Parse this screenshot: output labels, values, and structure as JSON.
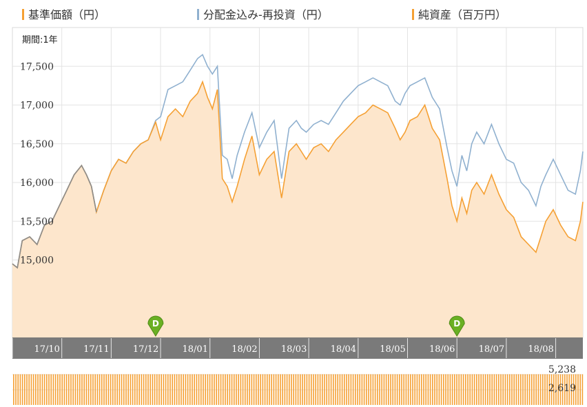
{
  "legend": {
    "items": [
      {
        "label": "基準価額（円）",
        "color": "#f5a033"
      },
      {
        "label": "分配金込み-再投資（円）",
        "color": "#8fb0cf"
      },
      {
        "label": "純資産（百万円）",
        "color": "#f5a033"
      }
    ]
  },
  "period_label": "期間:1年",
  "distribution_marker": "D",
  "colors": {
    "nav_line": "#f5a033",
    "nav_fill": "#fde6cc",
    "reinvest_line": "#8fb0cf",
    "grid": "#e3e3e3",
    "month_bar": "#7a7a7a",
    "volume_bar": "#f5a033",
    "marker": "#6ab023"
  },
  "chart_data": {
    "type": "line",
    "title": "",
    "ylim": [
      14000,
      18000
    ],
    "yticks": [
      "15,000",
      "15,500",
      "16,000",
      "16,500",
      "17,000",
      "17,500"
    ],
    "ytick_values": [
      15000,
      15500,
      16000,
      16500,
      17000,
      17500
    ],
    "x_categories": [
      "17/10",
      "17/11",
      "17/12",
      "18/01",
      "18/02",
      "18/03",
      "18/04",
      "18/05",
      "18/06",
      "18/07",
      "18/08"
    ],
    "x_positions_month": [
      0.7,
      1.7,
      2.7,
      3.7,
      4.7,
      5.7,
      6.7,
      7.7,
      8.7,
      9.7,
      10.7
    ],
    "distribution_months": [
      2.9,
      9.0
    ],
    "series": [
      {
        "name": "基準価額（円）",
        "x": [
          0,
          0.1,
          0.2,
          0.35,
          0.5,
          0.65,
          0.8,
          0.95,
          1.1,
          1.25,
          1.4,
          1.5,
          1.6,
          1.7,
          1.85,
          2.0,
          2.15,
          2.3,
          2.45,
          2.6,
          2.75,
          2.9,
          3.0,
          3.15,
          3.3,
          3.45,
          3.6,
          3.75,
          3.85,
          3.95,
          4.05,
          4.15,
          4.25,
          4.35,
          4.45,
          4.55,
          4.7,
          4.85,
          5.0,
          5.15,
          5.3,
          5.45,
          5.6,
          5.75,
          5.85,
          5.95,
          6.1,
          6.25,
          6.4,
          6.55,
          6.7,
          6.85,
          7.0,
          7.15,
          7.3,
          7.45,
          7.6,
          7.75,
          7.85,
          7.95,
          8.05,
          8.2,
          8.35,
          8.5,
          8.65,
          8.8,
          8.9,
          9.0,
          9.1,
          9.2,
          9.3,
          9.4,
          9.55,
          9.7,
          9.85,
          10.0,
          10.15,
          10.3,
          10.45,
          10.6,
          10.7,
          10.8,
          10.95,
          11.1,
          11.25,
          11.4,
          11.5,
          11.55
        ],
        "values": [
          14950,
          14900,
          15250,
          15300,
          15200,
          15450,
          15500,
          15700,
          15900,
          16100,
          16220,
          16100,
          15950,
          15620,
          15900,
          16150,
          16300,
          16250,
          16400,
          16500,
          16550,
          16780,
          16550,
          16850,
          16950,
          16850,
          17050,
          17150,
          17300,
          17100,
          16950,
          17200,
          16050,
          15950,
          15750,
          15950,
          16300,
          16600,
          16100,
          16300,
          16400,
          15800,
          16400,
          16500,
          16400,
          16300,
          16450,
          16500,
          16400,
          16550,
          16650,
          16750,
          16850,
          16900,
          17000,
          16950,
          16900,
          16700,
          16550,
          16650,
          16800,
          16850,
          17000,
          16700,
          16550,
          16050,
          15700,
          15500,
          15800,
          15600,
          15900,
          16000,
          15850,
          16100,
          15850,
          15650,
          15550,
          15300,
          15200,
          15100,
          15300,
          15500,
          15650,
          15450,
          15300,
          15250,
          15500,
          15750
        ]
      },
      {
        "name": "分配金込み-再投資（円）",
        "x": [
          0,
          0.1,
          0.2,
          0.35,
          0.5,
          0.65,
          0.8,
          0.95,
          1.1,
          1.25,
          1.4,
          1.5,
          1.6,
          1.7,
          1.85,
          2.0,
          2.15,
          2.3,
          2.45,
          2.6,
          2.75,
          2.9,
          3.0,
          3.15,
          3.3,
          3.45,
          3.6,
          3.75,
          3.85,
          3.95,
          4.05,
          4.15,
          4.25,
          4.35,
          4.45,
          4.55,
          4.7,
          4.85,
          5.0,
          5.15,
          5.3,
          5.45,
          5.6,
          5.75,
          5.85,
          5.95,
          6.1,
          6.25,
          6.4,
          6.55,
          6.7,
          6.85,
          7.0,
          7.15,
          7.3,
          7.45,
          7.6,
          7.75,
          7.85,
          7.95,
          8.05,
          8.2,
          8.35,
          8.5,
          8.65,
          8.8,
          8.9,
          9.0,
          9.1,
          9.2,
          9.3,
          9.4,
          9.55,
          9.7,
          9.85,
          10.0,
          10.15,
          10.3,
          10.45,
          10.6,
          10.7,
          10.8,
          10.95,
          11.1,
          11.25,
          11.4,
          11.5,
          11.55
        ],
        "values": [
          14950,
          14900,
          15250,
          15300,
          15200,
          15450,
          15500,
          15700,
          15900,
          16100,
          16220,
          16100,
          15950,
          15620,
          15900,
          16150,
          16300,
          16250,
          16400,
          16500,
          16550,
          16800,
          16850,
          17200,
          17250,
          17300,
          17450,
          17600,
          17650,
          17500,
          17400,
          17500,
          16350,
          16300,
          16050,
          16350,
          16650,
          16900,
          16450,
          16650,
          16800,
          16050,
          16700,
          16800,
          16700,
          16650,
          16750,
          16800,
          16750,
          16900,
          17050,
          17150,
          17250,
          17300,
          17350,
          17300,
          17250,
          17050,
          17000,
          17150,
          17250,
          17300,
          17350,
          17100,
          16950,
          16450,
          16150,
          15950,
          16350,
          16150,
          16500,
          16650,
          16500,
          16750,
          16500,
          16300,
          16250,
          16000,
          15900,
          15700,
          15950,
          16100,
          16300,
          16100,
          15900,
          15850,
          16150,
          16400
        ]
      },
      {
        "name": "純資産（百万円）",
        "volume_max_label": "5,238",
        "volume_mid_label": "2,619",
        "values_level": 0.93
      }
    ]
  }
}
